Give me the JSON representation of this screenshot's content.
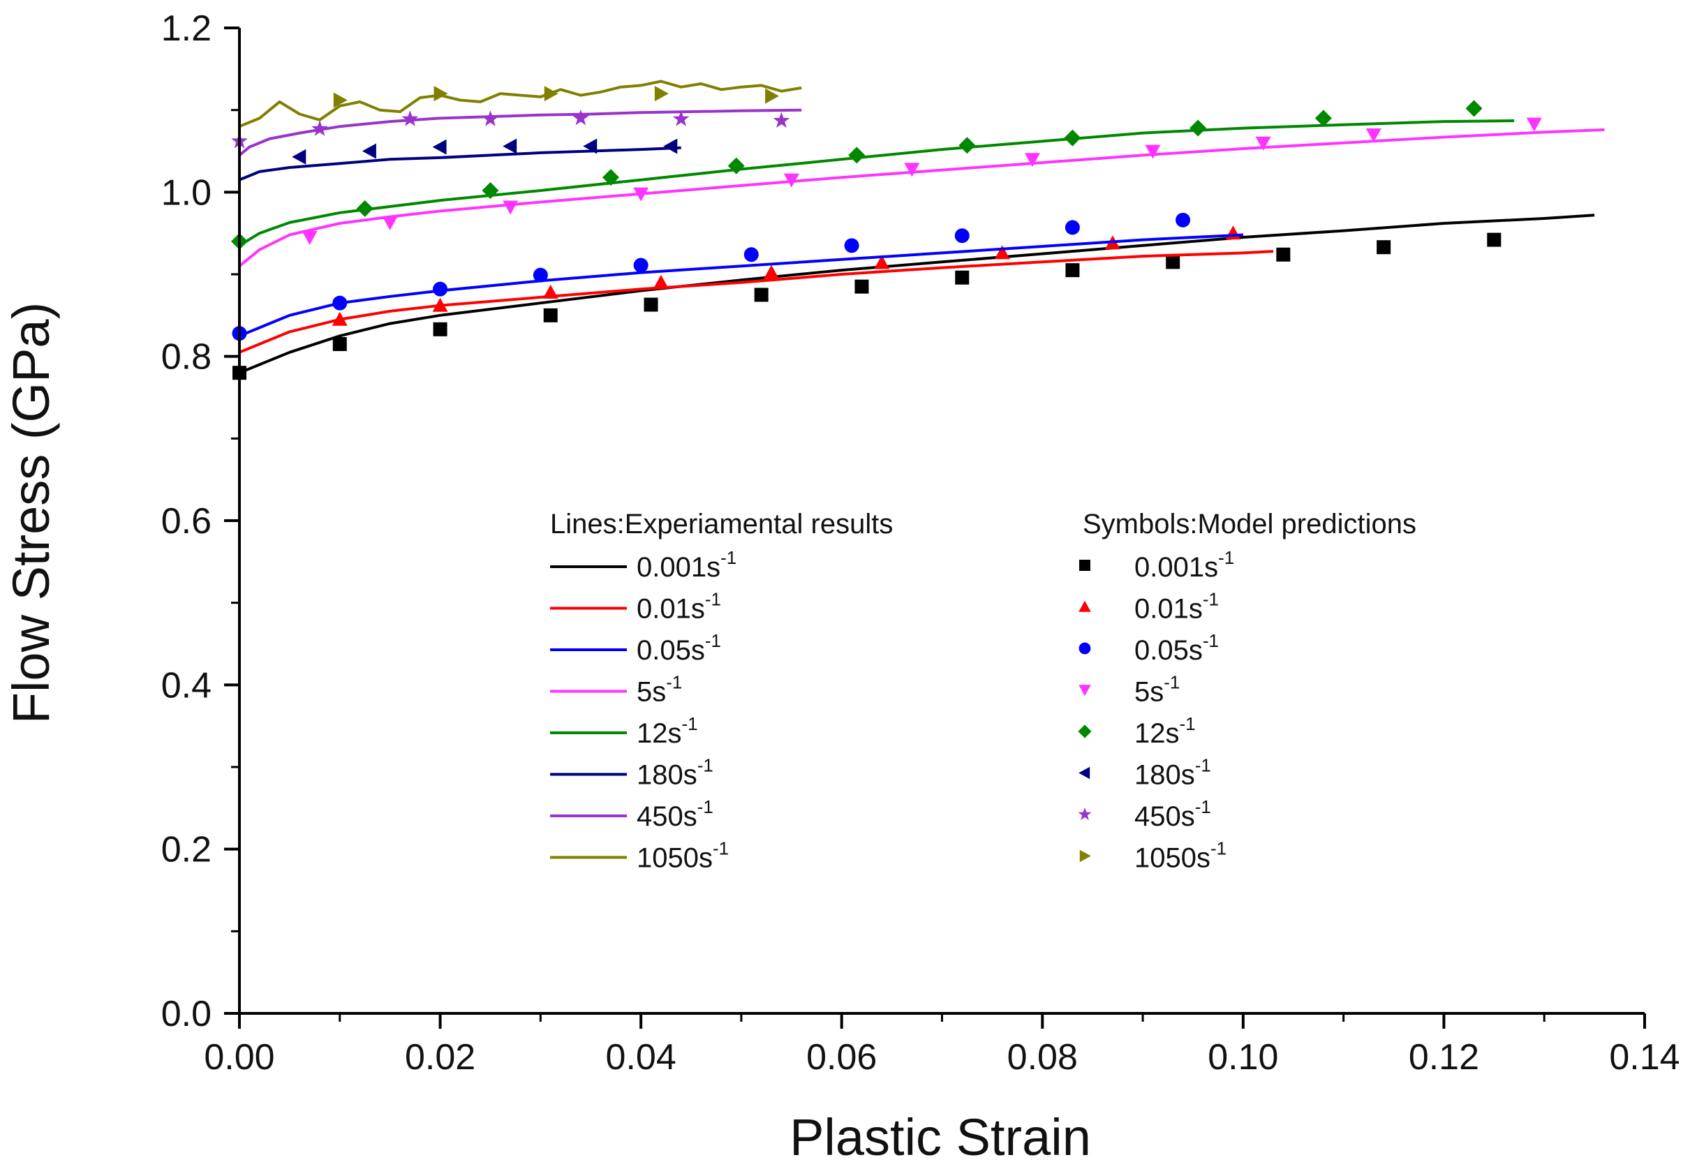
{
  "chart_data": {
    "type": "line",
    "xlabel": "Plastic Strain",
    "ylabel": "Flow Stress (GPa)",
    "xlim": [
      0,
      0.14
    ],
    "ylim": [
      0,
      1.2
    ],
    "x_ticks": [
      "0.00",
      "0.02",
      "0.04",
      "0.06",
      "0.08",
      "0.10",
      "0.12",
      "0.14"
    ],
    "y_ticks": [
      "0.0",
      "0.2",
      "0.4",
      "0.6",
      "0.8",
      "1.0",
      "1.2"
    ],
    "legend_lines_title": "Lines:Experiamental results",
    "legend_symbols_title": "Symbols:Model predictions",
    "grid": false,
    "series": [
      {
        "name": "0.001s",
        "rate_sup": "-1",
        "color": "#000000",
        "marker": "square",
        "line": {
          "x": [
            0,
            0.002,
            0.005,
            0.01,
            0.015,
            0.02,
            0.03,
            0.04,
            0.05,
            0.06,
            0.07,
            0.08,
            0.09,
            0.1,
            0.11,
            0.12,
            0.13,
            0.135
          ],
          "y": [
            0.78,
            0.79,
            0.805,
            0.825,
            0.84,
            0.85,
            0.865,
            0.88,
            0.893,
            0.905,
            0.915,
            0.925,
            0.935,
            0.945,
            0.953,
            0.962,
            0.968,
            0.972
          ]
        },
        "points": {
          "x": [
            0.0,
            0.01,
            0.02,
            0.031,
            0.041,
            0.052,
            0.062,
            0.072,
            0.083,
            0.093,
            0.104,
            0.114,
            0.125
          ],
          "y": [
            0.78,
            0.815,
            0.833,
            0.85,
            0.863,
            0.875,
            0.885,
            0.896,
            0.905,
            0.915,
            0.924,
            0.933,
            0.942
          ]
        }
      },
      {
        "name": "0.01s",
        "rate_sup": "-1",
        "color": "#ff0000",
        "marker": "triangle-up",
        "line": {
          "x": [
            0,
            0.002,
            0.005,
            0.01,
            0.015,
            0.02,
            0.03,
            0.04,
            0.05,
            0.06,
            0.07,
            0.08,
            0.09,
            0.1,
            0.103
          ],
          "y": [
            0.805,
            0.815,
            0.83,
            0.845,
            0.855,
            0.862,
            0.872,
            0.882,
            0.89,
            0.9,
            0.908,
            0.915,
            0.922,
            0.926,
            0.928
          ]
        },
        "points": {
          "x": [
            0.01,
            0.02,
            0.031,
            0.042,
            0.053,
            0.064,
            0.076,
            0.087,
            0.099
          ],
          "y": [
            0.845,
            0.862,
            0.878,
            0.89,
            0.902,
            0.914,
            0.926,
            0.938,
            0.95
          ]
        }
      },
      {
        "name": "0.05s",
        "rate_sup": "-1",
        "color": "#0000ff",
        "marker": "circle",
        "line": {
          "x": [
            0,
            0.002,
            0.005,
            0.01,
            0.015,
            0.02,
            0.03,
            0.04,
            0.05,
            0.06,
            0.07,
            0.08,
            0.09,
            0.1
          ],
          "y": [
            0.825,
            0.835,
            0.85,
            0.865,
            0.873,
            0.88,
            0.892,
            0.902,
            0.91,
            0.918,
            0.926,
            0.934,
            0.942,
            0.948
          ]
        },
        "points": {
          "x": [
            0.0,
            0.01,
            0.02,
            0.03,
            0.04,
            0.051,
            0.061,
            0.072,
            0.083,
            0.094
          ],
          "y": [
            0.828,
            0.865,
            0.882,
            0.899,
            0.911,
            0.924,
            0.935,
            0.947,
            0.957,
            0.966
          ]
        }
      },
      {
        "name": "5s",
        "rate_sup": "-1",
        "color": "#ff33ff",
        "marker": "triangle-down",
        "line": {
          "x": [
            0,
            0.002,
            0.005,
            0.01,
            0.015,
            0.02,
            0.03,
            0.04,
            0.05,
            0.06,
            0.07,
            0.08,
            0.09,
            0.1,
            0.11,
            0.12,
            0.13,
            0.136
          ],
          "y": [
            0.91,
            0.93,
            0.948,
            0.962,
            0.97,
            0.977,
            0.988,
            0.998,
            1.008,
            1.018,
            1.027,
            1.036,
            1.045,
            1.053,
            1.06,
            1.067,
            1.073,
            1.076
          ]
        },
        "points": {
          "x": [
            0.007,
            0.015,
            0.027,
            0.04,
            0.055,
            0.067,
            0.079,
            0.091,
            0.102,
            0.113,
            0.129
          ],
          "y": [
            0.945,
            0.963,
            0.982,
            0.998,
            1.015,
            1.028,
            1.04,
            1.05,
            1.06,
            1.07,
            1.083
          ]
        }
      },
      {
        "name": "12s",
        "rate_sup": "-1",
        "color": "#008800",
        "marker": "diamond",
        "line": {
          "x": [
            0,
            0.002,
            0.005,
            0.01,
            0.02,
            0.03,
            0.04,
            0.05,
            0.06,
            0.07,
            0.08,
            0.09,
            0.1,
            0.11,
            0.12,
            0.127
          ],
          "y": [
            0.935,
            0.95,
            0.963,
            0.975,
            0.99,
            1.002,
            1.015,
            1.028,
            1.04,
            1.052,
            1.062,
            1.072,
            1.078,
            1.082,
            1.086,
            1.087
          ]
        },
        "points": {
          "x": [
            0.0,
            0.0125,
            0.025,
            0.037,
            0.0495,
            0.0615,
            0.0725,
            0.083,
            0.0955,
            0.108,
            0.123
          ],
          "y": [
            0.94,
            0.98,
            1.002,
            1.018,
            1.032,
            1.045,
            1.057,
            1.066,
            1.078,
            1.09,
            1.102
          ]
        }
      },
      {
        "name": "180s",
        "rate_sup": "-1",
        "color": "#000080",
        "marker": "triangle-left",
        "line": {
          "x": [
            0,
            0.002,
            0.005,
            0.01,
            0.015,
            0.02,
            0.025,
            0.03,
            0.035,
            0.04,
            0.044
          ],
          "y": [
            1.015,
            1.025,
            1.03,
            1.035,
            1.04,
            1.042,
            1.045,
            1.048,
            1.05,
            1.052,
            1.054
          ]
        },
        "points": {
          "x": [
            0.006,
            0.013,
            0.02,
            0.027,
            0.035,
            0.043
          ],
          "y": [
            1.043,
            1.05,
            1.055,
            1.056,
            1.056,
            1.056
          ]
        }
      },
      {
        "name": "450s",
        "rate_sup": "-1",
        "color": "#9933cc",
        "marker": "star",
        "line": {
          "x": [
            0,
            0.001,
            0.003,
            0.006,
            0.01,
            0.015,
            0.02,
            0.025,
            0.03,
            0.035,
            0.04,
            0.045,
            0.05,
            0.056
          ],
          "y": [
            1.045,
            1.055,
            1.065,
            1.072,
            1.08,
            1.086,
            1.09,
            1.092,
            1.094,
            1.095,
            1.097,
            1.098,
            1.099,
            1.1
          ]
        },
        "points": {
          "x": [
            0.0,
            0.008,
            0.017,
            0.025,
            0.034,
            0.044,
            0.054
          ],
          "y": [
            1.062,
            1.077,
            1.089,
            1.089,
            1.09,
            1.089,
            1.087
          ]
        }
      },
      {
        "name": "1050s",
        "rate_sup": "-1",
        "color": "#808000",
        "marker": "triangle-right",
        "line": {
          "x": [
            0,
            0.002,
            0.004,
            0.006,
            0.008,
            0.01,
            0.012,
            0.014,
            0.016,
            0.018,
            0.02,
            0.022,
            0.024,
            0.026,
            0.028,
            0.03,
            0.032,
            0.034,
            0.036,
            0.038,
            0.04,
            0.042,
            0.044,
            0.046,
            0.048,
            0.05,
            0.052,
            0.054,
            0.056
          ],
          "y": [
            1.08,
            1.09,
            1.11,
            1.095,
            1.088,
            1.105,
            1.11,
            1.1,
            1.098,
            1.115,
            1.118,
            1.112,
            1.11,
            1.12,
            1.118,
            1.116,
            1.125,
            1.118,
            1.122,
            1.128,
            1.13,
            1.135,
            1.128,
            1.132,
            1.125,
            1.128,
            1.13,
            1.123,
            1.127
          ]
        },
        "points": {
          "x": [
            0.01,
            0.02,
            0.031,
            0.042,
            0.053
          ],
          "y": [
            1.112,
            1.12,
            1.12,
            1.12,
            1.117
          ]
        }
      }
    ]
  }
}
